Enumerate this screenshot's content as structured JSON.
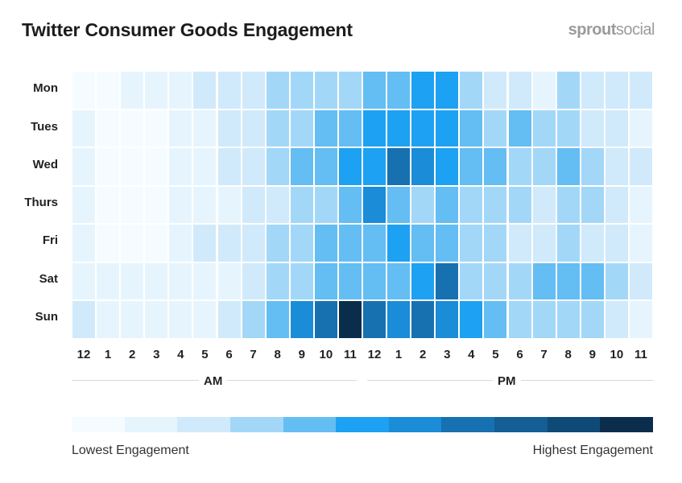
{
  "header": {
    "title": "Twitter Consumer Goods Engagement",
    "logo_text": "sproutsocial"
  },
  "chart_data": {
    "type": "heatmap",
    "title": "Twitter Consumer Goods Engagement",
    "rows": [
      "Mon",
      "Tues",
      "Wed",
      "Thurs",
      "Fri",
      "Sat",
      "Sun"
    ],
    "columns": [
      "12",
      "1",
      "2",
      "3",
      "4",
      "5",
      "6",
      "7",
      "8",
      "9",
      "10",
      "11",
      "12",
      "1",
      "2",
      "3",
      "4",
      "5",
      "6",
      "7",
      "8",
      "9",
      "10",
      "11"
    ],
    "column_groups": [
      {
        "label": "AM",
        "span": 12
      },
      {
        "label": "PM",
        "span": 12
      }
    ],
    "scale": {
      "min_label": "Lowest Engagement",
      "max_label": "Highest Engagement",
      "levels": 11,
      "colors": [
        "#f5fcff",
        "#e6f5fd",
        "#d0eafb",
        "#a3d7f8",
        "#64bdf3",
        "#1da1f2",
        "#1a8cd8",
        "#1771b0",
        "#135e94",
        "#0f4a77",
        "#0b2d4c"
      ]
    },
    "values": [
      [
        0,
        0,
        1,
        1,
        1,
        2,
        2,
        2,
        3,
        3,
        3,
        3,
        4,
        4,
        5,
        5,
        3,
        2,
        2,
        1,
        3,
        2,
        2,
        2
      ],
      [
        1,
        0,
        0,
        0,
        1,
        1,
        2,
        2,
        3,
        3,
        4,
        4,
        5,
        5,
        5,
        5,
        4,
        3,
        4,
        3,
        3,
        2,
        2,
        1
      ],
      [
        1,
        0,
        0,
        0,
        1,
        1,
        2,
        2,
        3,
        4,
        4,
        5,
        5,
        7,
        6,
        5,
        4,
        4,
        3,
        3,
        4,
        3,
        2,
        2
      ],
      [
        1,
        0,
        0,
        0,
        1,
        1,
        1,
        2,
        2,
        3,
        3,
        4,
        6,
        4,
        3,
        4,
        3,
        3,
        3,
        2,
        3,
        3,
        2,
        1
      ],
      [
        1,
        0,
        0,
        0,
        1,
        2,
        2,
        2,
        3,
        3,
        4,
        4,
        4,
        5,
        4,
        4,
        3,
        3,
        2,
        2,
        3,
        2,
        2,
        1
      ],
      [
        1,
        1,
        1,
        1,
        1,
        1,
        1,
        2,
        3,
        3,
        4,
        4,
        4,
        4,
        5,
        7,
        3,
        3,
        3,
        4,
        4,
        4,
        3,
        2
      ],
      [
        2,
        1,
        1,
        1,
        1,
        1,
        2,
        3,
        4,
        6,
        7,
        10,
        7,
        6,
        7,
        6,
        5,
        4,
        3,
        3,
        3,
        3,
        2,
        1
      ]
    ]
  }
}
